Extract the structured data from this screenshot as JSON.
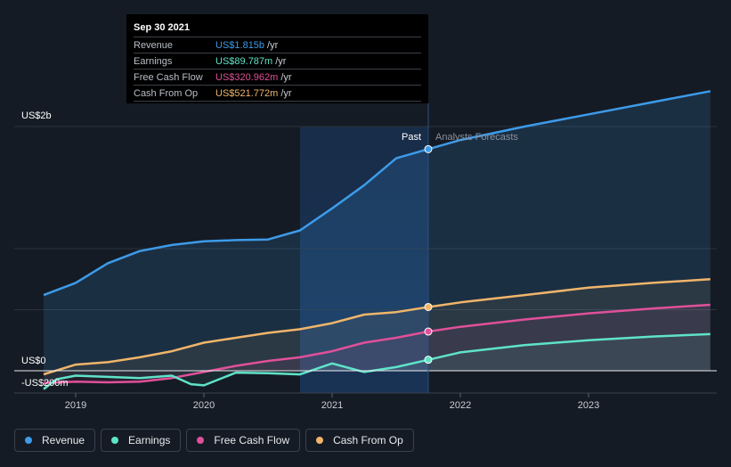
{
  "tooltip": {
    "date": "Sep 30 2021",
    "rows": [
      {
        "name": "Revenue",
        "value": "US$1.815b",
        "unit": "/yr",
        "color": "#3d9be9"
      },
      {
        "name": "Earnings",
        "value": "US$89.787m",
        "unit": "/yr",
        "color": "#5fe3c8"
      },
      {
        "name": "Free Cash Flow",
        "value": "US$320.962m",
        "unit": "/yr",
        "color": "#e0509a"
      },
      {
        "name": "Cash From Op",
        "value": "US$521.772m",
        "unit": "/yr",
        "color": "#f0b56a"
      }
    ]
  },
  "labels": {
    "past": "Past",
    "forecast": "Analysts Forecasts"
  },
  "legend": [
    {
      "name": "Revenue",
      "color": "#3d9be9"
    },
    {
      "name": "Earnings",
      "color": "#5fe3c8"
    },
    {
      "name": "Free Cash Flow",
      "color": "#e0509a"
    },
    {
      "name": "Cash From Op",
      "color": "#f0b56a"
    }
  ],
  "chart_data": {
    "type": "line",
    "y_ticks": [
      {
        "value": 2000,
        "label": "US$2b"
      },
      {
        "value": 0,
        "label": "US$0"
      },
      {
        "value": -200,
        "label": "-US$200m"
      }
    ],
    "ylim": [
      -200,
      2000
    ],
    "xlim": [
      2018.7,
      2023.95
    ],
    "x_ticks": [
      {
        "value": 2019,
        "label": "2019"
      },
      {
        "value": 2020,
        "label": "2020"
      },
      {
        "value": 2021,
        "label": "2021"
      },
      {
        "value": 2022,
        "label": "2022"
      },
      {
        "value": 2023,
        "label": "2023"
      }
    ],
    "past_end": 2021.75,
    "highlight_start": 2020.75,
    "series": [
      {
        "name": "Revenue",
        "color": "#3d9be9",
        "past": [
          [
            2018.75,
            620
          ],
          [
            2019.0,
            720
          ],
          [
            2019.25,
            880
          ],
          [
            2019.5,
            980
          ],
          [
            2019.75,
            1030
          ],
          [
            2020.0,
            1060
          ],
          [
            2020.25,
            1070
          ],
          [
            2020.5,
            1075
          ],
          [
            2020.75,
            1150
          ],
          [
            2021.0,
            1330
          ],
          [
            2021.25,
            1520
          ],
          [
            2021.5,
            1740
          ],
          [
            2021.75,
            1815
          ]
        ],
        "forecast": [
          [
            2021.75,
            1815
          ],
          [
            2022.0,
            1890
          ],
          [
            2022.5,
            2000
          ],
          [
            2023.0,
            2100
          ],
          [
            2023.5,
            2200
          ],
          [
            2023.95,
            2290
          ]
        ]
      },
      {
        "name": "Cash From Op",
        "color": "#f0b56a",
        "past": [
          [
            2018.75,
            -30
          ],
          [
            2019.0,
            50
          ],
          [
            2019.25,
            70
          ],
          [
            2019.5,
            110
          ],
          [
            2019.75,
            160
          ],
          [
            2020.0,
            230
          ],
          [
            2020.25,
            270
          ],
          [
            2020.5,
            310
          ],
          [
            2020.75,
            340
          ],
          [
            2021.0,
            390
          ],
          [
            2021.25,
            460
          ],
          [
            2021.5,
            480
          ],
          [
            2021.75,
            522
          ]
        ],
        "forecast": [
          [
            2021.75,
            522
          ],
          [
            2022.0,
            560
          ],
          [
            2022.5,
            620
          ],
          [
            2023.0,
            680
          ],
          [
            2023.5,
            720
          ],
          [
            2023.95,
            750
          ]
        ]
      },
      {
        "name": "Free Cash Flow",
        "color": "#e0509a",
        "past": [
          [
            2018.75,
            -100
          ],
          [
            2019.0,
            -90
          ],
          [
            2019.25,
            -95
          ],
          [
            2019.5,
            -90
          ],
          [
            2019.75,
            -60
          ],
          [
            2020.0,
            -10
          ],
          [
            2020.25,
            40
          ],
          [
            2020.5,
            80
          ],
          [
            2020.75,
            110
          ],
          [
            2021.0,
            160
          ],
          [
            2021.25,
            230
          ],
          [
            2021.5,
            270
          ],
          [
            2021.75,
            321
          ]
        ],
        "forecast": [
          [
            2021.75,
            321
          ],
          [
            2022.0,
            360
          ],
          [
            2022.5,
            420
          ],
          [
            2023.0,
            470
          ],
          [
            2023.5,
            510
          ],
          [
            2023.95,
            540
          ]
        ]
      },
      {
        "name": "Earnings",
        "color": "#5fe3c8",
        "past": [
          [
            2018.75,
            -150
          ],
          [
            2018.85,
            -70
          ],
          [
            2019.0,
            -40
          ],
          [
            2019.25,
            -50
          ],
          [
            2019.5,
            -60
          ],
          [
            2019.75,
            -40
          ],
          [
            2019.9,
            -110
          ],
          [
            2020.0,
            -120
          ],
          [
            2020.25,
            -15
          ],
          [
            2020.5,
            -20
          ],
          [
            2020.75,
            -30
          ],
          [
            2021.0,
            60
          ],
          [
            2021.25,
            -10
          ],
          [
            2021.5,
            30
          ],
          [
            2021.75,
            90
          ]
        ],
        "forecast": [
          [
            2021.75,
            90
          ],
          [
            2022.0,
            150
          ],
          [
            2022.5,
            210
          ],
          [
            2023.0,
            250
          ],
          [
            2023.5,
            280
          ],
          [
            2023.95,
            300
          ]
        ]
      }
    ]
  }
}
